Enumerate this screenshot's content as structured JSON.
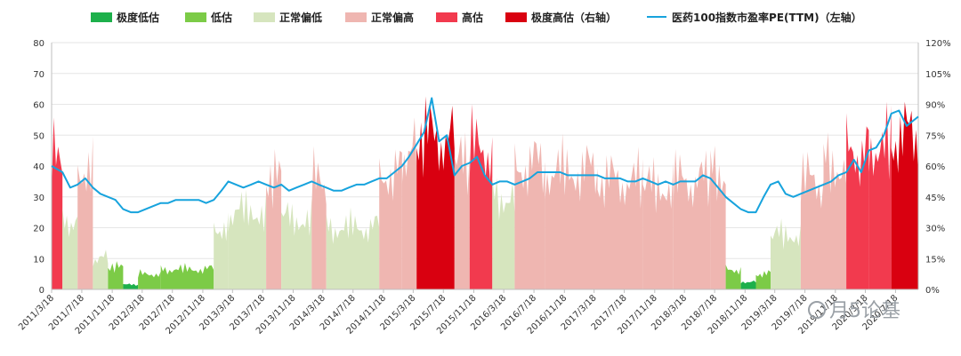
{
  "chart_data": {
    "type": "area",
    "legend": [
      {
        "key": "extreme_low",
        "label": "极度低估",
        "color": "#1DB04B"
      },
      {
        "key": "low",
        "label": "低估",
        "color": "#7CCB47"
      },
      {
        "key": "normal_low",
        "label": "正常偏低",
        "color": "#D6E5BE"
      },
      {
        "key": "normal_high",
        "label": "正常偏高",
        "color": "#EFB6B1"
      },
      {
        "key": "high",
        "label": "高估",
        "color": "#F23A4E"
      },
      {
        "key": "extreme_high",
        "label": "极度高估（右轴）",
        "color": "#D90010"
      },
      {
        "key": "pe_line",
        "label": "医药100指数市盈率PE(TTM)（左轴）",
        "color": "#17A3DD"
      }
    ],
    "legend_position": "top",
    "y_left": {
      "min": 0,
      "max": 80,
      "ticks": [
        "0",
        "10",
        "20",
        "30",
        "40",
        "50",
        "60",
        "70",
        "80"
      ]
    },
    "y_right": {
      "min": 0,
      "max": 1.2,
      "ticks": [
        "0%",
        "15%",
        "30%",
        "45%",
        "60%",
        "75%",
        "90%",
        "105%",
        "120%"
      ]
    },
    "x_ticks": [
      "2011/3/18",
      "2011/7/18",
      "2011/11/18",
      "2012/3/18",
      "2012/7/18",
      "2012/11/18",
      "2013/3/18",
      "2013/7/18",
      "2013/11/18",
      "2014/3/18",
      "2014/7/18",
      "2014/11/18",
      "2015/3/18",
      "2015/7/18",
      "2015/11/18",
      "2016/3/18",
      "2016/7/18",
      "2016/11/18",
      "2017/3/18",
      "2017/7/18",
      "2017/11/18",
      "2018/3/18",
      "2018/7/18",
      "2018/11/18",
      "2019/3/18",
      "2019/7/18",
      "2019/11/18",
      "2020/3/18",
      "2020/7/18"
    ],
    "x_range": [
      "2011/3/18",
      "2020/10/18"
    ],
    "pe_series": {
      "name": "医药100指数市盈率PE(TTM)",
      "points": [
        [
          "2011/3/18",
          40
        ],
        [
          "2011/5/1",
          38
        ],
        [
          "2011/6/1",
          33
        ],
        [
          "2011/7/1",
          34
        ],
        [
          "2011/8/1",
          36
        ],
        [
          "2011/9/1",
          33
        ],
        [
          "2011/10/1",
          31
        ],
        [
          "2011/11/1",
          30
        ],
        [
          "2011/12/1",
          29
        ],
        [
          "2012/1/1",
          26
        ],
        [
          "2012/2/1",
          25
        ],
        [
          "2012/3/1",
          25
        ],
        [
          "2012/4/1",
          26
        ],
        [
          "2012/5/1",
          27
        ],
        [
          "2012/6/1",
          28
        ],
        [
          "2012/7/1",
          28
        ],
        [
          "2012/8/1",
          29
        ],
        [
          "2012/9/1",
          29
        ],
        [
          "2012/10/1",
          29
        ],
        [
          "2012/11/1",
          29
        ],
        [
          "2012/12/1",
          28
        ],
        [
          "2013/1/1",
          29
        ],
        [
          "2013/2/1",
          32
        ],
        [
          "2013/3/1",
          35
        ],
        [
          "2013/4/1",
          34
        ],
        [
          "2013/5/1",
          33
        ],
        [
          "2013/6/1",
          34
        ],
        [
          "2013/7/1",
          35
        ],
        [
          "2013/8/1",
          34
        ],
        [
          "2013/9/1",
          33
        ],
        [
          "2013/10/1",
          34
        ],
        [
          "2013/11/1",
          32
        ],
        [
          "2013/12/1",
          33
        ],
        [
          "2014/1/1",
          34
        ],
        [
          "2014/2/1",
          35
        ],
        [
          "2014/3/1",
          34
        ],
        [
          "2014/4/1",
          33
        ],
        [
          "2014/5/1",
          32
        ],
        [
          "2014/6/1",
          32
        ],
        [
          "2014/7/1",
          33
        ],
        [
          "2014/8/1",
          34
        ],
        [
          "2014/9/1",
          34
        ],
        [
          "2014/10/1",
          35
        ],
        [
          "2014/11/1",
          36
        ],
        [
          "2014/12/1",
          36
        ],
        [
          "2015/1/1",
          38
        ],
        [
          "2015/2/1",
          40
        ],
        [
          "2015/3/1",
          43
        ],
        [
          "2015/4/1",
          47
        ],
        [
          "2015/5/1",
          51
        ],
        [
          "2015/6/1",
          62
        ],
        [
          "2015/7/1",
          48
        ],
        [
          "2015/8/1",
          50
        ],
        [
          "2015/9/1",
          37
        ],
        [
          "2015/10/1",
          40
        ],
        [
          "2015/11/1",
          41
        ],
        [
          "2015/12/1",
          43
        ],
        [
          "2016/1/1",
          37
        ],
        [
          "2016/2/1",
          34
        ],
        [
          "2016/3/1",
          35
        ],
        [
          "2016/4/1",
          35
        ],
        [
          "2016/5/1",
          34
        ],
        [
          "2016/6/1",
          35
        ],
        [
          "2016/7/1",
          36
        ],
        [
          "2016/8/1",
          38
        ],
        [
          "2016/9/1",
          38
        ],
        [
          "2016/10/1",
          38
        ],
        [
          "2016/11/1",
          38
        ],
        [
          "2016/12/1",
          37
        ],
        [
          "2017/1/1",
          37
        ],
        [
          "2017/2/1",
          37
        ],
        [
          "2017/3/1",
          37
        ],
        [
          "2017/4/1",
          37
        ],
        [
          "2017/5/1",
          36
        ],
        [
          "2017/6/1",
          36
        ],
        [
          "2017/7/1",
          36
        ],
        [
          "2017/8/1",
          35
        ],
        [
          "2017/9/1",
          35
        ],
        [
          "2017/10/1",
          36
        ],
        [
          "2017/11/1",
          35
        ],
        [
          "2017/12/1",
          34
        ],
        [
          "2018/1/1",
          35
        ],
        [
          "2018/2/1",
          34
        ],
        [
          "2018/3/1",
          35
        ],
        [
          "2018/4/1",
          35
        ],
        [
          "2018/5/1",
          35
        ],
        [
          "2018/6/1",
          37
        ],
        [
          "2018/7/1",
          36
        ],
        [
          "2018/8/1",
          33
        ],
        [
          "2018/9/1",
          30
        ],
        [
          "2018/10/1",
          28
        ],
        [
          "2018/11/1",
          26
        ],
        [
          "2018/12/1",
          25
        ],
        [
          "2019/1/1",
          25
        ],
        [
          "2019/2/1",
          30
        ],
        [
          "2019/3/1",
          34
        ],
        [
          "2019/4/1",
          35
        ],
        [
          "2019/5/1",
          31
        ],
        [
          "2019/6/1",
          30
        ],
        [
          "2019/7/1",
          31
        ],
        [
          "2019/8/1",
          32
        ],
        [
          "2019/9/1",
          33
        ],
        [
          "2019/10/1",
          34
        ],
        [
          "2019/11/1",
          35
        ],
        [
          "2019/12/1",
          37
        ],
        [
          "2020/1/1",
          38
        ],
        [
          "2020/2/1",
          42
        ],
        [
          "2020/3/1",
          38
        ],
        [
          "2020/4/1",
          45
        ],
        [
          "2020/5/1",
          46
        ],
        [
          "2020/6/1",
          50
        ],
        [
          "2020/7/1",
          57
        ],
        [
          "2020/8/1",
          58
        ],
        [
          "2020/9/1",
          53
        ],
        [
          "2020/10/18",
          56
        ]
      ]
    },
    "band_series": {
      "unit": "percentile (right axis)",
      "segments": [
        {
          "start": "2011/3/18",
          "end": "2011/5/1",
          "band": "high",
          "value": 0.86
        },
        {
          "start": "2011/5/1",
          "end": "2011/7/1",
          "band": "normal_low",
          "value": 0.45
        },
        {
          "start": "2011/7/1",
          "end": "2011/9/1",
          "band": "normal_high",
          "value": 0.78
        },
        {
          "start": "2011/9/1",
          "end": "2011/11/1",
          "band": "normal_low",
          "value": 0.2
        },
        {
          "start": "2011/11/1",
          "end": "2012/1/1",
          "band": "low",
          "value": 0.14
        },
        {
          "start": "2012/1/1",
          "end": "2012/3/1",
          "band": "extreme_low",
          "value": 0.03
        },
        {
          "start": "2012/3/1",
          "end": "2012/6/1",
          "band": "low",
          "value": 0.1
        },
        {
          "start": "2012/6/1",
          "end": "2013/1/1",
          "band": "low",
          "value": 0.13
        },
        {
          "start": "2013/1/1",
          "end": "2013/3/1",
          "band": "normal_low",
          "value": 0.4
        },
        {
          "start": "2013/3/1",
          "end": "2013/8/1",
          "band": "normal_low",
          "value": 0.5
        },
        {
          "start": "2013/8/1",
          "end": "2013/10/1",
          "band": "normal_high",
          "value": 0.7
        },
        {
          "start": "2013/10/1",
          "end": "2014/2/1",
          "band": "normal_low",
          "value": 0.45
        },
        {
          "start": "2014/2/1",
          "end": "2014/4/1",
          "band": "normal_high",
          "value": 0.7
        },
        {
          "start": "2014/4/1",
          "end": "2014/11/1",
          "band": "normal_low",
          "value": 0.4
        },
        {
          "start": "2014/11/1",
          "end": "2015/2/1",
          "band": "normal_high",
          "value": 0.75
        },
        {
          "start": "2015/2/1",
          "end": "2015/4/1",
          "band": "normal_high",
          "value": 0.9
        },
        {
          "start": "2015/4/1",
          "end": "2015/9/1",
          "band": "extreme_high",
          "value": 0.98
        },
        {
          "start": "2015/9/1",
          "end": "2015/11/1",
          "band": "normal_high",
          "value": 0.8
        },
        {
          "start": "2015/11/1",
          "end": "2016/2/1",
          "band": "high",
          "value": 0.91
        },
        {
          "start": "2016/2/1",
          "end": "2016/5/1",
          "band": "normal_low",
          "value": 0.6
        },
        {
          "start": "2016/5/1",
          "end": "2016/9/1",
          "band": "normal_high",
          "value": 0.8
        },
        {
          "start": "2016/9/1",
          "end": "2017/4/1",
          "band": "normal_high",
          "value": 0.76
        },
        {
          "start": "2017/4/1",
          "end": "2017/10/1",
          "band": "normal_high",
          "value": 0.7
        },
        {
          "start": "2017/10/1",
          "end": "2018/2/1",
          "band": "normal_high",
          "value": 0.66
        },
        {
          "start": "2018/2/1",
          "end": "2018/7/1",
          "band": "normal_high",
          "value": 0.7
        },
        {
          "start": "2018/7/1",
          "end": "2018/9/1",
          "band": "normal_high",
          "value": 0.75
        },
        {
          "start": "2018/9/1",
          "end": "2018/11/1",
          "band": "low",
          "value": 0.13
        },
        {
          "start": "2018/11/1",
          "end": "2019/1/1",
          "band": "extreme_low",
          "value": 0.05
        },
        {
          "start": "2019/1/1",
          "end": "2019/3/1",
          "band": "low",
          "value": 0.1
        },
        {
          "start": "2019/3/1",
          "end": "2019/7/1",
          "band": "normal_low",
          "value": 0.35
        },
        {
          "start": "2019/7/1",
          "end": "2019/10/1",
          "band": "normal_high",
          "value": 0.7
        },
        {
          "start": "2019/10/1",
          "end": "2020/1/1",
          "band": "normal_high",
          "value": 0.8
        },
        {
          "start": "2020/1/1",
          "end": "2020/4/1",
          "band": "high",
          "value": 0.9
        },
        {
          "start": "2020/4/1",
          "end": "2020/7/1",
          "band": "high",
          "value": 0.93
        },
        {
          "start": "2020/7/1",
          "end": "2020/10/18",
          "band": "extreme_high",
          "value": 0.98
        }
      ]
    },
    "watermark": "月5论基"
  }
}
